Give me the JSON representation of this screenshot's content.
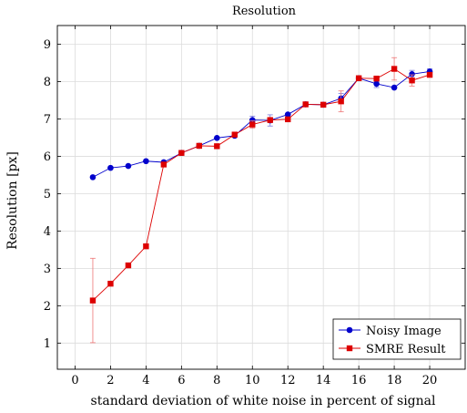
{
  "chart_data": {
    "type": "line",
    "title": "Resolution",
    "xlabel": "standard deviation of white noise in percent of signal",
    "ylabel": "Resolution [px]",
    "xlim": [
      -1,
      22
    ],
    "ylim": [
      0.3,
      9.5
    ],
    "xticks": [
      0,
      2,
      4,
      6,
      8,
      10,
      12,
      14,
      16,
      18,
      20
    ],
    "yticks": [
      1,
      2,
      3,
      4,
      5,
      6,
      7,
      8,
      9
    ],
    "grid": true,
    "legend_position": "bottom-right",
    "series": [
      {
        "name": "Noisy Image",
        "color": "#0000cc",
        "marker": "circle",
        "x": [
          1,
          2,
          3,
          4,
          5,
          6,
          7,
          8,
          9,
          10,
          11,
          12,
          13,
          14,
          15,
          16,
          17,
          18,
          19,
          20
        ],
        "y": [
          5.44,
          5.69,
          5.74,
          5.87,
          5.84,
          6.09,
          6.28,
          6.49,
          6.55,
          6.97,
          6.96,
          7.12,
          7.39,
          7.38,
          7.55,
          8.09,
          7.94,
          7.84,
          8.2,
          8.27
        ],
        "err": [
          0,
          0,
          0,
          0,
          0,
          0,
          0,
          0,
          0,
          0.1,
          0.15,
          0,
          0,
          0,
          0.13,
          0,
          0.1,
          0,
          0.1,
          0.07
        ]
      },
      {
        "name": "SMRE Result",
        "color": "#dd0000",
        "marker": "square",
        "x": [
          1,
          2,
          3,
          4,
          5,
          6,
          7,
          8,
          9,
          10,
          11,
          12,
          13,
          14,
          15,
          16,
          17,
          18,
          19,
          20
        ],
        "y": [
          2.14,
          2.59,
          3.08,
          3.59,
          5.78,
          6.09,
          6.28,
          6.27,
          6.58,
          6.85,
          6.97,
          6.99,
          7.39,
          7.38,
          7.47,
          8.09,
          8.08,
          8.34,
          8.03,
          8.18
        ],
        "err": [
          1.13,
          0,
          0,
          0,
          0,
          0,
          0,
          0,
          0,
          0.1,
          0,
          0,
          0,
          0,
          0.28,
          0,
          0.06,
          0.3,
          0.15,
          0
        ]
      }
    ]
  }
}
